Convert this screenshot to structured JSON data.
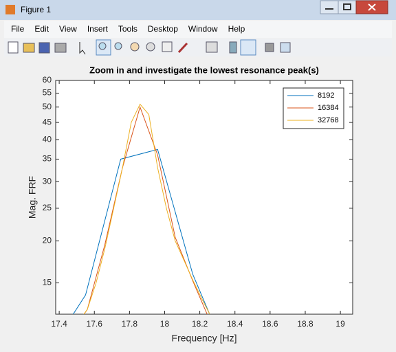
{
  "window": {
    "title": "Figure 1",
    "menu": [
      "File",
      "Edit",
      "View",
      "Insert",
      "Tools",
      "Desktop",
      "Window",
      "Help"
    ]
  },
  "chart_data": {
    "type": "line",
    "title": "Zoom in and investigate the lowest resonance peak(s)",
    "xlabel": "Frequency [Hz]",
    "ylabel": "Mag. FRF",
    "yscale": "log",
    "xlim": [
      17.38,
      19.07
    ],
    "ylim": [
      12.1,
      60
    ],
    "xticks": [
      17.4,
      17.6,
      17.8,
      18,
      18.2,
      18.4,
      18.6,
      18.8,
      19
    ],
    "yticks": [
      15,
      20,
      25,
      30,
      35,
      40,
      45,
      50,
      55,
      60
    ],
    "legend": "upper right",
    "series": [
      {
        "name": "8192",
        "color": "#0072bd",
        "x": [
          17.35,
          17.55,
          17.75,
          17.96,
          18.16,
          18.36
        ],
        "values": [
          9.5,
          13.8,
          35,
          37.4,
          15.9,
          9
        ]
      },
      {
        "name": "16384",
        "color": "#d95319",
        "x": [
          17.46,
          17.56,
          17.66,
          17.76,
          17.86,
          17.96,
          18.06,
          18.16,
          18.26
        ],
        "values": [
          10.5,
          12.5,
          19.5,
          33,
          50,
          36,
          20.5,
          15.2,
          11.5
        ]
      },
      {
        "name": "32768",
        "color": "#edb120",
        "x": [
          17.51,
          17.56,
          17.61,
          17.66,
          17.71,
          17.76,
          17.81,
          17.86,
          17.91,
          17.96,
          18.01,
          18.06,
          18.11,
          18.16,
          18.21,
          18.26,
          18.31
        ],
        "values": [
          11.5,
          12.5,
          15,
          19,
          25,
          33,
          45,
          51,
          47.5,
          33,
          25,
          20,
          17.5,
          15.3,
          13.5,
          12,
          11
        ]
      }
    ]
  }
}
